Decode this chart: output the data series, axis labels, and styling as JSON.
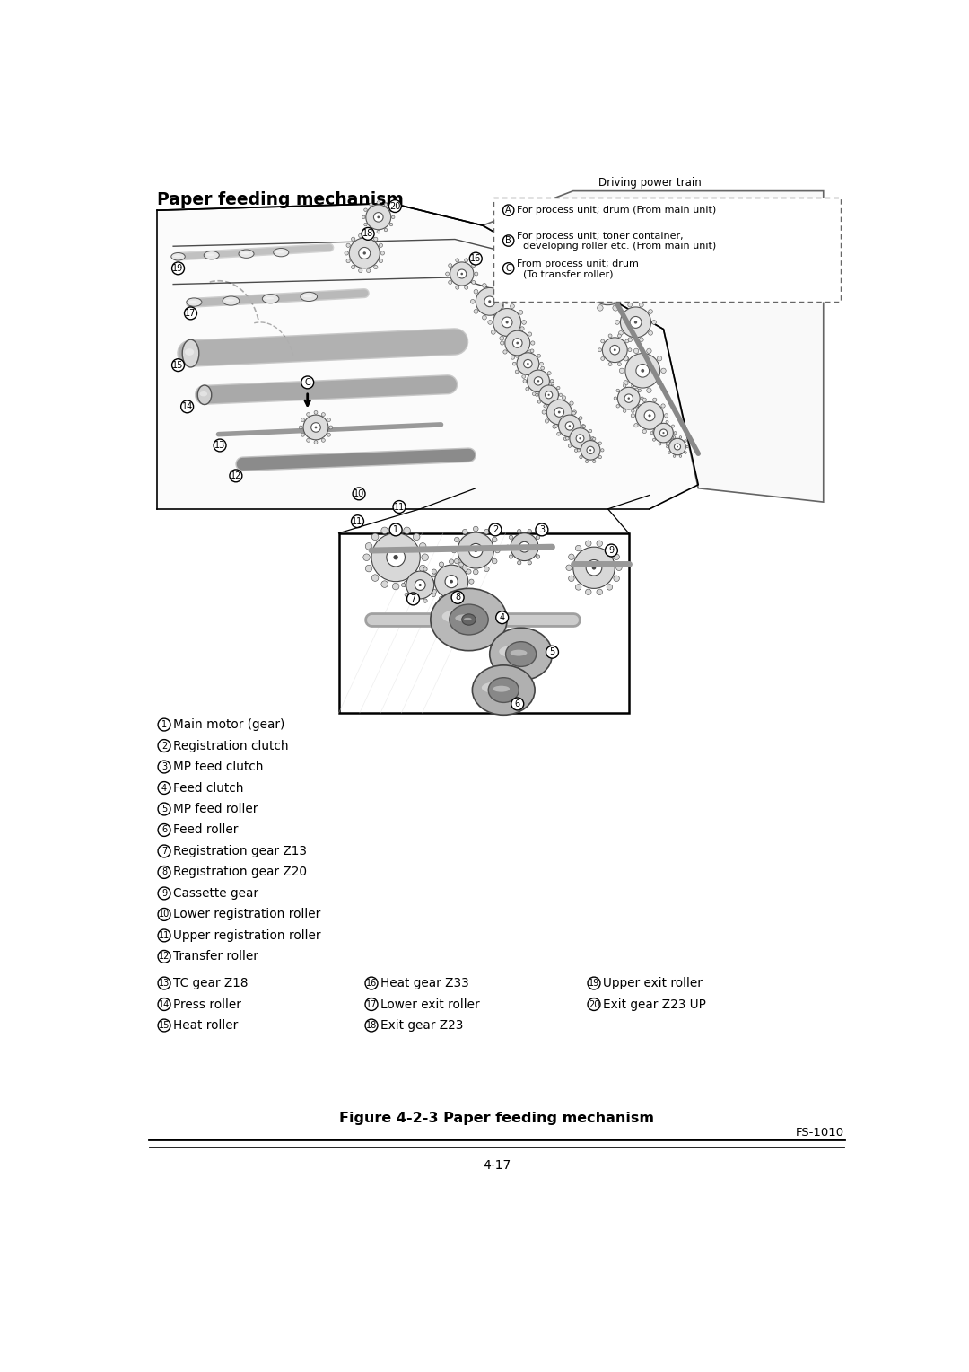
{
  "title": "Paper feeding mechanism",
  "figure_caption": "Figure 4-2-3 Paper feeding mechanism",
  "page_num": "4-17",
  "model": "FS-1010",
  "bg_color": "#ffffff",
  "driving_power_train_label": "Driving power train",
  "legend_items": [
    {
      "symbol": "A",
      "text": "For process unit; drum (From main unit)"
    },
    {
      "symbol": "B",
      "text1": "For process unit; toner container,",
      "text2": "  developing roller etc. (From main unit)"
    },
    {
      "symbol": "C",
      "text1": "From process unit; drum",
      "text2": "  (To transfer roller)"
    }
  ],
  "parts_col1": [
    {
      "num": "1",
      "text": "Main motor (gear)"
    },
    {
      "num": "2",
      "text": "Registration clutch"
    },
    {
      "num": "3",
      "text": "MP feed clutch"
    },
    {
      "num": "4",
      "text": "Feed clutch"
    },
    {
      "num": "5",
      "text": "MP feed roller"
    },
    {
      "num": "6",
      "text": "Feed roller"
    },
    {
      "num": "7",
      "text": "Registration gear Z13"
    },
    {
      "num": "8",
      "text": "Registration gear Z20"
    },
    {
      "num": "9",
      "text": "Cassette gear"
    },
    {
      "num": "10",
      "text": "Lower registration roller"
    },
    {
      "num": "11",
      "text": "Upper registration roller"
    },
    {
      "num": "12",
      "text": "Transfer roller"
    }
  ],
  "parts_col2": [
    {
      "num": "13",
      "text": "TC gear Z18"
    },
    {
      "num": "14",
      "text": "Press roller"
    },
    {
      "num": "15",
      "text": "Heat roller"
    }
  ],
  "parts_col3": [
    {
      "num": "16",
      "text": "Heat gear Z33"
    },
    {
      "num": "17",
      "text": "Lower exit roller"
    },
    {
      "num": "18",
      "text": "Exit gear Z23"
    }
  ],
  "parts_col4": [
    {
      "num": "19",
      "text": "Upper exit roller"
    },
    {
      "num": "20",
      "text": "Exit gear Z23 UP"
    }
  ]
}
